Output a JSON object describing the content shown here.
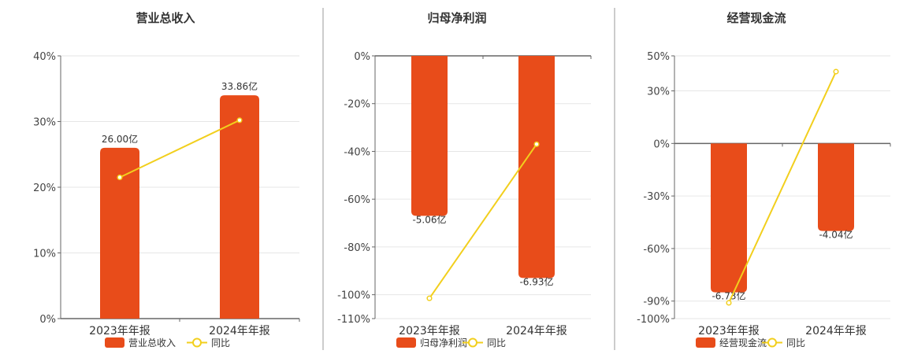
{
  "colors": {
    "bar": "#e84c1a",
    "line": "#f2cf1d",
    "divider": "#999999",
    "grid": "#e6e6e6",
    "axis": "#666666"
  },
  "chart_data": [
    {
      "type": "bar",
      "title": "营业总收入",
      "categories": [
        "2023年年报",
        "2024年年报"
      ],
      "series": [
        {
          "name": "营业总收入",
          "type": "bar",
          "values": [
            26.0,
            33.86
          ],
          "labels": [
            "26.00亿",
            "33.86亿"
          ]
        },
        {
          "name": "同比",
          "type": "line",
          "values": [
            21.5,
            30.2
          ]
        }
      ],
      "ylim": [
        0,
        40
      ],
      "yticks": [
        0,
        10,
        20,
        30,
        40
      ],
      "ytick_labels": [
        "0%",
        "10%",
        "20%",
        "30%",
        "40%"
      ],
      "bar_pct": [
        26,
        34
      ],
      "label_position": "top",
      "legend": "bottom-center"
    },
    {
      "type": "bar",
      "title": "归母净利润",
      "categories": [
        "2023年年报",
        "2024年年报"
      ],
      "series": [
        {
          "name": "归母净利润",
          "type": "bar",
          "values": [
            -5.06,
            -6.93
          ],
          "labels": [
            "-5.06亿",
            "-6.93亿"
          ]
        },
        {
          "name": "同比",
          "type": "line",
          "values": [
            -101.5,
            -37.0
          ]
        }
      ],
      "ylim": [
        -110,
        0
      ],
      "yticks": [
        0,
        -20,
        -40,
        -60,
        -80,
        -100,
        -110
      ],
      "ytick_labels": [
        "0%",
        "-20%",
        "-40%",
        "-60%",
        "-80%",
        "-100%",
        "-110%"
      ],
      "bar_pct": [
        -67,
        -93
      ],
      "label_position": "bottom",
      "legend": "bottom-center"
    },
    {
      "type": "bar",
      "title": "经营现金流",
      "categories": [
        "2023年年报",
        "2024年年报"
      ],
      "series": [
        {
          "name": "经营现金流",
          "type": "bar",
          "values": [
            -6.73,
            -4.04
          ],
          "labels": [
            "-6.73亿",
            "-4.04亿"
          ]
        },
        {
          "name": "同比",
          "type": "line",
          "values": [
            -91.0,
            41.0
          ]
        }
      ],
      "ylim": [
        -100,
        50
      ],
      "yticks": [
        50,
        30,
        0,
        -30,
        -60,
        -90,
        -100
      ],
      "ytick_labels": [
        "50%",
        "30%",
        "0%",
        "-30%",
        "-60%",
        "-90%",
        "-100%"
      ],
      "bar_pct": [
        -85,
        -50
      ],
      "label_position": "bottom",
      "legend": "bottom-center"
    }
  ]
}
